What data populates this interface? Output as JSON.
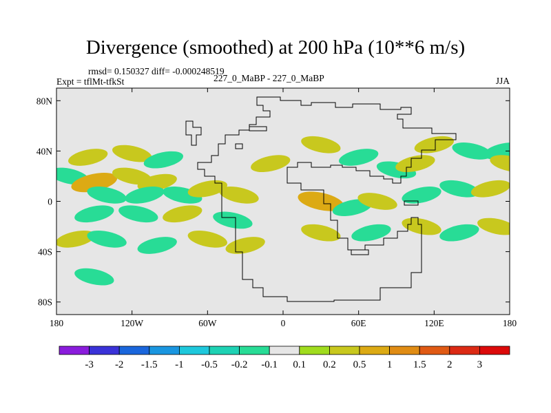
{
  "title": "Divergence (smoothed) at 200 hPa (10**6 m/s)",
  "stats_text": "rmsd= 0.150327 diff= -0.000248519",
  "expt_label": "Expt = tflMt-tfkSt",
  "experiment_pair": "227_0_MaBP - 227_0_MaBP",
  "season": "JJA",
  "colors": {
    "background_field": "#e6e6e6",
    "coastline": "#000000"
  },
  "chart_data": {
    "type": "heatmap",
    "title": "Divergence (smoothed) at 200 hPa (10**6 m/s)",
    "units": "10**6 m/s",
    "projection": "cylindrical equidistant",
    "xlim": [
      -180,
      180
    ],
    "ylim": [
      -90,
      90
    ],
    "x_ticks": [
      {
        "value": -180,
        "label": "180"
      },
      {
        "value": -120,
        "label": "120W"
      },
      {
        "value": -60,
        "label": "60W"
      },
      {
        "value": 0,
        "label": "0"
      },
      {
        "value": 60,
        "label": "60E"
      },
      {
        "value": 120,
        "label": "120E"
      },
      {
        "value": 180,
        "label": "180"
      }
    ],
    "y_ticks": [
      {
        "value": 80,
        "label": "80N"
      },
      {
        "value": 40,
        "label": "40N"
      },
      {
        "value": 0,
        "label": "0"
      },
      {
        "value": -40,
        "label": "40S"
      },
      {
        "value": -80,
        "label": "80S"
      }
    ],
    "colorbar": {
      "levels": [
        "-3",
        "-2",
        "-1.5",
        "-1",
        "-0.5",
        "-0.2",
        "-0.1",
        "0.1",
        "0.2",
        "0.5",
        "1",
        "1.5",
        "2",
        "3"
      ],
      "colors": [
        "#8a1cdc",
        "#3a32d8",
        "#1a66dc",
        "#1a96e0",
        "#1ec8dc",
        "#1ed2b4",
        "#28dc96",
        "#e6e6e6",
        "#a0dc1e",
        "#c8c81e",
        "#dcaa14",
        "#e08c14",
        "#e05a14",
        "#dc2a14",
        "#dc0a0a"
      ]
    },
    "fields": [
      {
        "lon": -155,
        "lat": 35,
        "value": 0.2
      },
      {
        "lon": -120,
        "lat": 38,
        "value": 0.2
      },
      {
        "lon": -95,
        "lat": 33,
        "value": -0.2
      },
      {
        "lon": -170,
        "lat": 20,
        "value": -0.2
      },
      {
        "lon": -150,
        "lat": 15,
        "value": 0.5
      },
      {
        "lon": -120,
        "lat": 20,
        "value": 0.2
      },
      {
        "lon": -100,
        "lat": 15,
        "value": 0.2
      },
      {
        "lon": -140,
        "lat": 5,
        "value": -0.2
      },
      {
        "lon": -110,
        "lat": 5,
        "value": -0.2
      },
      {
        "lon": -80,
        "lat": 5,
        "value": -0.2
      },
      {
        "lon": -60,
        "lat": 10,
        "value": 0.2
      },
      {
        "lon": -35,
        "lat": 5,
        "value": 0.2
      },
      {
        "lon": -150,
        "lat": -10,
        "value": -0.2
      },
      {
        "lon": -115,
        "lat": -10,
        "value": -0.2
      },
      {
        "lon": -80,
        "lat": -10,
        "value": 0.2
      },
      {
        "lon": -40,
        "lat": -15,
        "value": -0.2
      },
      {
        "lon": -165,
        "lat": -30,
        "value": 0.2
      },
      {
        "lon": -140,
        "lat": -30,
        "value": -0.2
      },
      {
        "lon": -100,
        "lat": -35,
        "value": -0.2
      },
      {
        "lon": -60,
        "lat": -30,
        "value": 0.2
      },
      {
        "lon": -30,
        "lat": -35,
        "value": 0.2
      },
      {
        "lon": -150,
        "lat": -60,
        "value": -0.2
      },
      {
        "lon": -10,
        "lat": 30,
        "value": 0.2
      },
      {
        "lon": 30,
        "lat": 45,
        "value": 0.2
      },
      {
        "lon": 60,
        "lat": 35,
        "value": -0.2
      },
      {
        "lon": 90,
        "lat": 25,
        "value": -0.2
      },
      {
        "lon": 105,
        "lat": 30,
        "value": 0.2
      },
      {
        "lon": 30,
        "lat": 0,
        "value": 0.5
      },
      {
        "lon": 55,
        "lat": -5,
        "value": -0.2
      },
      {
        "lon": 75,
        "lat": 0,
        "value": 0.2
      },
      {
        "lon": 110,
        "lat": 5,
        "value": -0.2
      },
      {
        "lon": 140,
        "lat": 10,
        "value": -0.2
      },
      {
        "lon": 165,
        "lat": 10,
        "value": 0.2
      },
      {
        "lon": 30,
        "lat": -25,
        "value": 0.2
      },
      {
        "lon": 70,
        "lat": -25,
        "value": -0.2
      },
      {
        "lon": 110,
        "lat": -20,
        "value": 0.2
      },
      {
        "lon": 140,
        "lat": -25,
        "value": -0.2
      },
      {
        "lon": 170,
        "lat": -20,
        "value": 0.2
      },
      {
        "lon": 120,
        "lat": 45,
        "value": 0.2
      },
      {
        "lon": 150,
        "lat": 40,
        "value": -0.2
      },
      {
        "lon": 175,
        "lat": 40,
        "value": -0.2
      },
      {
        "lon": 180,
        "lat": 30,
        "value": 0.2
      }
    ]
  }
}
